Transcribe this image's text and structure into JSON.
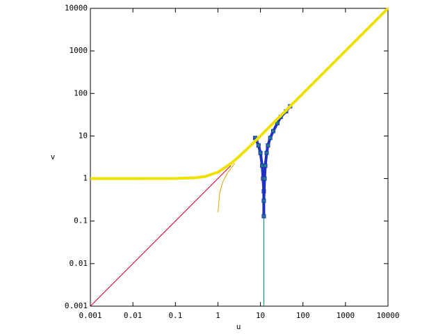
{
  "chart_data": {
    "type": "line",
    "xlabel": "u",
    "ylabel": "v",
    "xscale": "log",
    "yscale": "log",
    "xlim": [
      0.001,
      10000
    ],
    "ylim": [
      0.001,
      10000
    ],
    "xticks": [
      0.001,
      0.01,
      0.1,
      1,
      10,
      100,
      1000,
      10000
    ],
    "yticks": [
      0.001,
      0.01,
      0.1,
      1,
      10,
      100,
      1000,
      10000
    ],
    "series": [
      {
        "color": "#c00020",
        "width": 1,
        "marker": false,
        "x": [
          0.001,
          2
        ],
        "values": [
          0.001,
          2
        ]
      },
      {
        "color": "#e0a000",
        "width": 1,
        "marker": false,
        "x": [
          1.0,
          1.1,
          1.3,
          1.6,
          2,
          2.5
        ],
        "values": [
          0.16,
          0.46,
          0.83,
          1.25,
          1.73,
          2.29
        ]
      },
      {
        "color": "#008060",
        "width": 1,
        "marker": false,
        "x": [
          12,
          12
        ],
        "values": [
          0.001,
          0.13
        ]
      },
      {
        "color": "#2030c0",
        "width": 4,
        "marker": true,
        "x": [
          7.5,
          8,
          9,
          10,
          11,
          11.5,
          12,
          12
        ],
        "values": [
          9,
          8,
          6,
          4,
          2,
          1,
          0.5,
          0.13
        ]
      },
      {
        "color": "#2030c0",
        "width": 4,
        "marker": true,
        "x": [
          12,
          12.5,
          13,
          14,
          15,
          17,
          20,
          25,
          30,
          40,
          50
        ],
        "values": [
          0.3,
          1,
          2,
          4,
          6,
          9,
          13,
          20,
          28,
          38,
          50
        ]
      },
      {
        "color": "#f0e000",
        "width": 4,
        "marker": false,
        "x": [
          0.001,
          0.01,
          0.1,
          0.3,
          0.5,
          1,
          2,
          3,
          5,
          10,
          100,
          1000,
          10000
        ],
        "values": [
          1,
          1,
          1.005,
          1.044,
          1.118,
          1.414,
          2.236,
          3.162,
          5.099,
          10.05,
          100,
          1000,
          10000
        ]
      }
    ]
  }
}
